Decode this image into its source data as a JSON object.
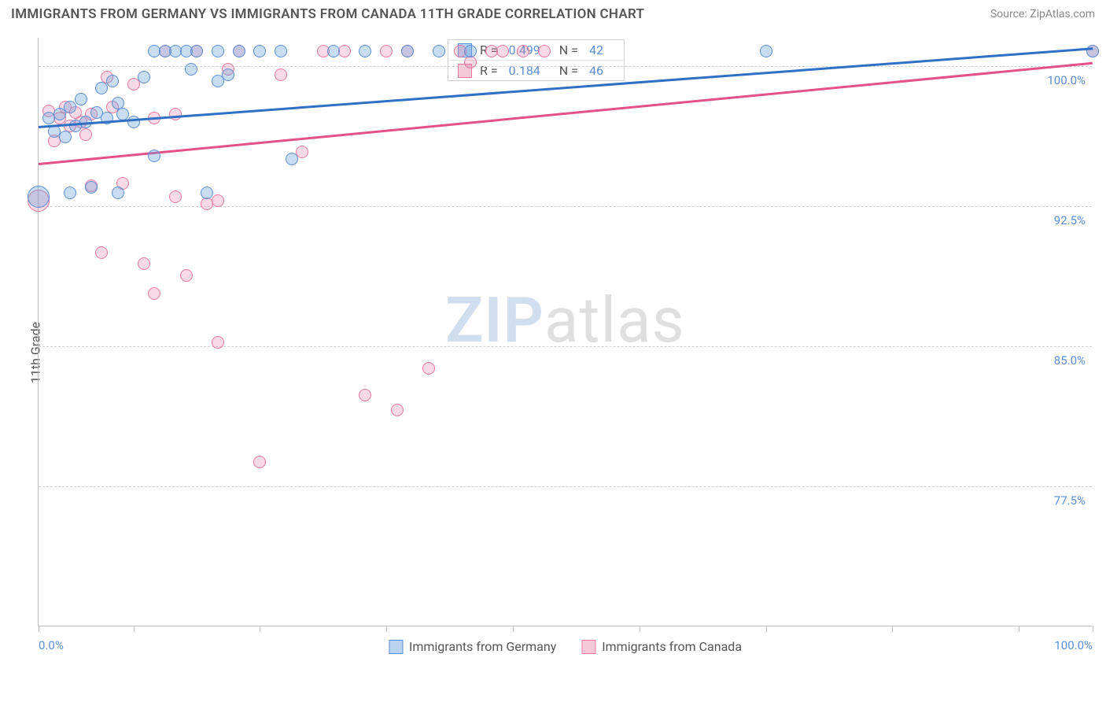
{
  "title": "IMMIGRANTS FROM GERMANY VS IMMIGRANTS FROM CANADA 11TH GRADE CORRELATION CHART",
  "source": "Source: ZipAtlas.com",
  "y_axis_label": "11th Grade",
  "watermark_zip": "ZIP",
  "watermark_atlas": "atlas",
  "chart": {
    "type": "scatter-with-trendlines",
    "xlim": [
      0,
      100
    ],
    "ylim": [
      70,
      101.5
    ],
    "x_ticks": [
      0,
      9,
      21,
      33,
      45,
      57,
      69,
      81,
      93,
      100
    ],
    "x_tick_labels": {
      "0": "0.0%",
      "100": "100.0%"
    },
    "y_ticks": [
      77.5,
      85.0,
      92.5,
      100.0
    ],
    "y_tick_labels": [
      "77.5%",
      "85.0%",
      "92.5%",
      "100.0%"
    ],
    "background_color": "#ffffff",
    "grid_color": "#d0d0d0",
    "marker_radius": 8,
    "big_marker_radius": 14
  },
  "series": {
    "germany": {
      "label": "Immigrants from Germany",
      "color_fill": "rgba(101,157,219,0.35)",
      "color_stroke": "#5b8fd6",
      "trend_color": "#2f6fc4",
      "R": "0.499",
      "N": "42",
      "trend": {
        "x1": 0,
        "y1": 96.8,
        "x2": 100,
        "y2": 101.0
      },
      "points": [
        {
          "x": 0,
          "y": 93,
          "r": 14
        },
        {
          "x": 1,
          "y": 97.2
        },
        {
          "x": 1.5,
          "y": 96.5
        },
        {
          "x": 2,
          "y": 97.4
        },
        {
          "x": 2.5,
          "y": 96.2
        },
        {
          "x": 3,
          "y": 93.2
        },
        {
          "x": 3,
          "y": 97.8
        },
        {
          "x": 3.5,
          "y": 96.8
        },
        {
          "x": 4,
          "y": 98.2
        },
        {
          "x": 4.5,
          "y": 97.0
        },
        {
          "x": 5,
          "y": 93.5
        },
        {
          "x": 5.5,
          "y": 97.5
        },
        {
          "x": 6,
          "y": 98.8
        },
        {
          "x": 6.5,
          "y": 97.2
        },
        {
          "x": 7,
          "y": 99.2
        },
        {
          "x": 7.5,
          "y": 98.0
        },
        {
          "x": 7.5,
          "y": 93.2
        },
        {
          "x": 8,
          "y": 97.4
        },
        {
          "x": 9,
          "y": 97.0
        },
        {
          "x": 10,
          "y": 99.4
        },
        {
          "x": 11,
          "y": 100.8
        },
        {
          "x": 11,
          "y": 95.2
        },
        {
          "x": 12,
          "y": 100.8
        },
        {
          "x": 13,
          "y": 100.8
        },
        {
          "x": 14,
          "y": 100.8
        },
        {
          "x": 14.5,
          "y": 99.8
        },
        {
          "x": 15,
          "y": 100.8
        },
        {
          "x": 16,
          "y": 93.2
        },
        {
          "x": 17,
          "y": 100.8
        },
        {
          "x": 17,
          "y": 99.2
        },
        {
          "x": 18,
          "y": 99.5
        },
        {
          "x": 19,
          "y": 100.8
        },
        {
          "x": 21,
          "y": 100.8
        },
        {
          "x": 23,
          "y": 100.8
        },
        {
          "x": 24,
          "y": 95.0
        },
        {
          "x": 28,
          "y": 100.8
        },
        {
          "x": 31,
          "y": 100.8
        },
        {
          "x": 35,
          "y": 100.8
        },
        {
          "x": 38,
          "y": 100.8
        },
        {
          "x": 41,
          "y": 100.8
        },
        {
          "x": 69,
          "y": 100.8
        },
        {
          "x": 100,
          "y": 100.8
        }
      ]
    },
    "canada": {
      "label": "Immigrants from Canada",
      "color_fill": "rgba(232,120,160,0.28)",
      "color_stroke": "#e878a0",
      "trend_color": "#e25289",
      "R": "0.184",
      "N": "46",
      "trend": {
        "x1": 0,
        "y1": 94.8,
        "x2": 100,
        "y2": 100.2
      },
      "points": [
        {
          "x": 0,
          "y": 92.8,
          "r": 14
        },
        {
          "x": 1,
          "y": 97.6
        },
        {
          "x": 1.5,
          "y": 96.0
        },
        {
          "x": 2,
          "y": 97.2
        },
        {
          "x": 2.5,
          "y": 97.8
        },
        {
          "x": 3,
          "y": 96.8
        },
        {
          "x": 3.5,
          "y": 97.5
        },
        {
          "x": 4,
          "y": 97.0
        },
        {
          "x": 4.5,
          "y": 96.3
        },
        {
          "x": 5,
          "y": 93.6
        },
        {
          "x": 5,
          "y": 97.4
        },
        {
          "x": 6,
          "y": 90.0
        },
        {
          "x": 6.5,
          "y": 99.4
        },
        {
          "x": 7,
          "y": 97.8
        },
        {
          "x": 8,
          "y": 93.7
        },
        {
          "x": 9,
          "y": 99.0
        },
        {
          "x": 10,
          "y": 89.4
        },
        {
          "x": 11,
          "y": 97.2
        },
        {
          "x": 11,
          "y": 87.8
        },
        {
          "x": 12,
          "y": 100.8
        },
        {
          "x": 13,
          "y": 97.4
        },
        {
          "x": 13,
          "y": 93.0
        },
        {
          "x": 14,
          "y": 88.8
        },
        {
          "x": 15,
          "y": 100.8
        },
        {
          "x": 16,
          "y": 92.6
        },
        {
          "x": 17,
          "y": 92.8
        },
        {
          "x": 17,
          "y": 85.2
        },
        {
          "x": 18,
          "y": 99.8
        },
        {
          "x": 19,
          "y": 100.8
        },
        {
          "x": 21,
          "y": 78.8
        },
        {
          "x": 23,
          "y": 99.5
        },
        {
          "x": 25,
          "y": 95.4
        },
        {
          "x": 27,
          "y": 100.8
        },
        {
          "x": 29,
          "y": 100.8
        },
        {
          "x": 31,
          "y": 82.4
        },
        {
          "x": 33,
          "y": 100.8
        },
        {
          "x": 34,
          "y": 81.6
        },
        {
          "x": 35,
          "y": 100.8
        },
        {
          "x": 37,
          "y": 83.8
        },
        {
          "x": 40,
          "y": 100.8
        },
        {
          "x": 41,
          "y": 100.2
        },
        {
          "x": 43,
          "y": 100.8
        },
        {
          "x": 44,
          "y": 100.8
        },
        {
          "x": 46,
          "y": 100.8
        },
        {
          "x": 48,
          "y": 100.8
        },
        {
          "x": 100,
          "y": 100.8
        }
      ]
    }
  },
  "stats_legend": {
    "r_label": "R =",
    "n_label": "N ="
  }
}
